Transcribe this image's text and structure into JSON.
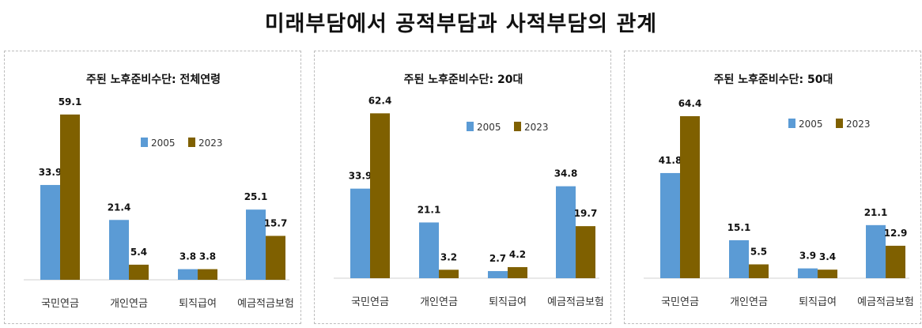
{
  "title": "미래부담에서 공적부담과 사적부담의 관계",
  "colors": {
    "2005": "#5B9BD5",
    "2023": "#7F6000"
  },
  "chart_data": [
    {
      "type": "bar",
      "title": "주된 노후준비수단: 전체연령",
      "categories": [
        "국민연금",
        "개인연금",
        "퇴직급여",
        "예금적금보험"
      ],
      "series": [
        {
          "name": "2005",
          "values": [
            33.9,
            21.4,
            3.8,
            25.1
          ]
        },
        {
          "name": "2023",
          "values": [
            59.1,
            5.4,
            3.8,
            15.7
          ]
        }
      ],
      "ylim": [
        0,
        65
      ],
      "grid": false,
      "legend": "right"
    },
    {
      "type": "bar",
      "title": "주된 노후준비수단: 20대",
      "categories": [
        "국민연금",
        "개인연금",
        "퇴직급여",
        "예금적금보험"
      ],
      "series": [
        {
          "name": "2005",
          "values": [
            33.9,
            21.1,
            2.7,
            34.8
          ]
        },
        {
          "name": "2023",
          "values": [
            62.4,
            3.2,
            4.2,
            19.7
          ]
        }
      ],
      "ylim": [
        0,
        67
      ],
      "grid": false,
      "legend": "top-right"
    },
    {
      "type": "bar",
      "title": "주된 노후준비수단: 50대",
      "categories": [
        "국민연금",
        "개인연금",
        "퇴직급여",
        "예금적금보험"
      ],
      "series": [
        {
          "name": "2005",
          "values": [
            41.8,
            15.1,
            3.9,
            21.1
          ]
        },
        {
          "name": "2023",
          "values": [
            64.4,
            5.5,
            3.4,
            12.9
          ]
        }
      ],
      "ylim": [
        0,
        71
      ],
      "grid": false,
      "legend": "top-right"
    }
  ]
}
